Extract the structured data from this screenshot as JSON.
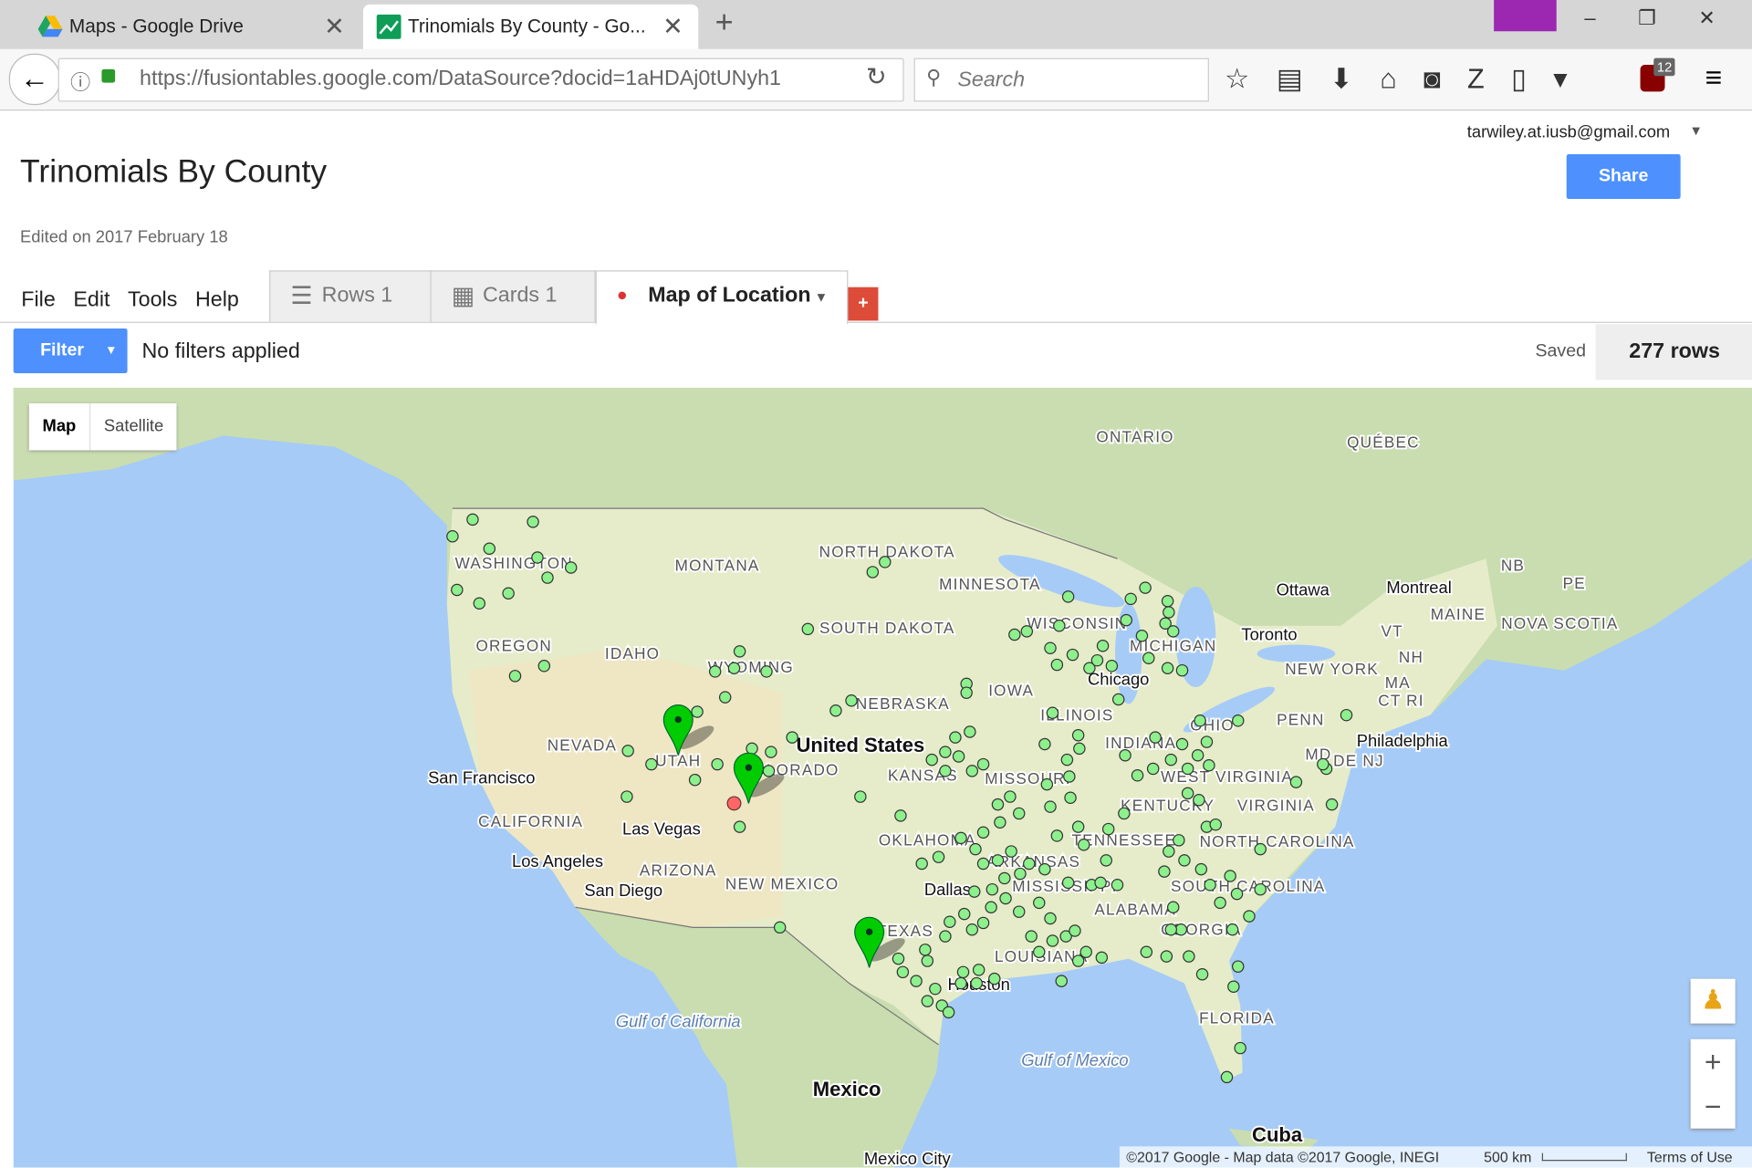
{
  "browser": {
    "tabs": [
      "Maps - Google Drive",
      "Trinomials By County - Go..."
    ],
    "url": "https://fusiontables.google.com/DataSource?docid=1aHDAj0tUNyh1",
    "search": "Search",
    "badge": "12"
  },
  "header": {
    "account": "tarwiley.at.iusb@gmail.com",
    "share": "Share",
    "title": "Trinomials By County",
    "edited": "Edited on 2017 February 18"
  },
  "menu": [
    "File",
    "Edit",
    "Tools",
    "Help"
  ],
  "tabs": [
    "Rows 1",
    "Cards 1",
    "Map of Location"
  ],
  "toolbar": {
    "filter": "Filter",
    "filters_text": "No filters applied",
    "saved": "Saved",
    "rows": "277 rows"
  },
  "map": {
    "buttons": [
      "Map",
      "Satellite"
    ],
    "labels": [
      "ONTARIO",
      "QUÉBEC",
      "NORTH DAKOTA",
      "MINNESOTA",
      "WASHINGTON",
      "MONTANA",
      "OREGON",
      "IDAHO",
      "WYOMING",
      "SOUTH DAKOTA",
      "NEBRASKA",
      "IOWA",
      "WISCONSIN",
      "MICHIGAN",
      "Chicago",
      "ILLINOIS",
      "Ottawa",
      "Montreal",
      "Toronto",
      "NB",
      "PE",
      "MAINE",
      "NOVA SCOTIA",
      "VT",
      "NH",
      "NEW YORK",
      "MA",
      "CT RI",
      "PENN",
      "Philadelphia",
      "OHIO",
      "INDIANA",
      "MD",
      "DE NJ",
      "WEST VIRGINIA",
      "VIRGINIA",
      "KENTUCKY",
      "NORTH CAROLINA",
      "TENNESSEE",
      "SOUTH CAROLINA",
      "ARKANSAS",
      "MISSISSIPPI",
      "ALABAMA",
      "GEORGIA",
      "LOUISIANA",
      "Houston",
      "Dallas",
      "TEXAS",
      "OKLAHOMA",
      "KANSAS",
      "MISSOURI",
      "United States",
      "NEVADA",
      "UTAH",
      "COLORADO",
      "San Francisco",
      "CALIFORNIA",
      "Las Vegas",
      "Los Angeles",
      "San Diego",
      "ARIZONA",
      "NEW MEXICO",
      "FLORIDA",
      "Gulf of Mexico",
      "Gulf of California",
      "Mexico",
      "Cuba",
      "Mexico City"
    ],
    "attribution": "©2017 Google - Map data ©2017 Google, INEGI",
    "scale": "500 km",
    "terms": "Terms of Use"
  }
}
